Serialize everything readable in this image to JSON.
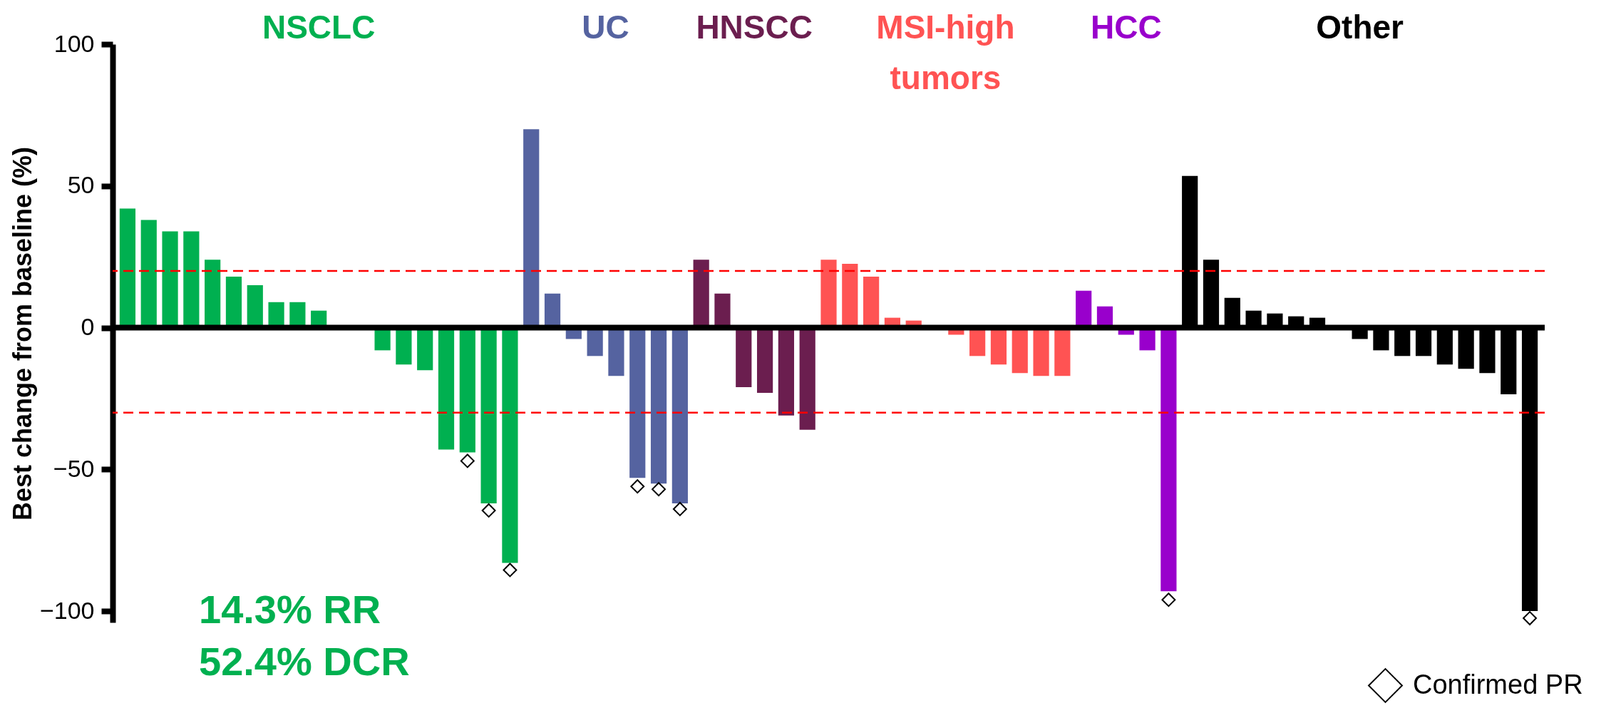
{
  "chart_data": {
    "type": "bar",
    "ylabel": "Best change from baseline (%)",
    "categories": [
      null,
      null,
      null,
      null,
      null,
      null,
      null,
      null,
      null,
      null,
      null,
      null,
      null,
      null,
      null,
      null,
      null,
      null,
      null,
      null,
      null,
      null,
      null,
      null,
      null,
      null,
      null,
      null,
      null,
      null,
      null,
      null,
      null,
      null,
      null,
      null,
      null,
      null,
      null,
      null,
      null,
      null,
      null,
      null,
      null,
      null,
      null,
      null,
      null,
      null,
      null,
      null,
      null,
      null,
      null,
      null,
      null,
      null,
      null,
      null,
      null,
      null,
      null,
      null,
      null,
      null,
      null
    ],
    "series": [
      {
        "name": "NSCLC",
        "color": "#00b050",
        "values": [
          42,
          38,
          34,
          34,
          24,
          18,
          15,
          9,
          9,
          6,
          null,
          null,
          -8,
          -13,
          -15,
          -43,
          -44,
          -62,
          -83,
          null,
          null,
          null,
          null,
          null,
          null,
          null,
          null,
          null,
          null,
          null,
          null,
          null,
          null,
          null,
          null,
          null,
          null,
          null,
          null,
          null,
          null,
          null,
          null,
          null,
          null,
          null,
          null,
          null,
          null,
          null,
          null,
          null,
          null,
          null,
          null,
          null,
          null,
          null,
          null,
          null,
          null,
          null,
          null,
          null,
          null,
          null,
          null
        ]
      },
      {
        "name": "UC",
        "color": "#5563a0",
        "values": [
          null,
          null,
          null,
          null,
          null,
          null,
          null,
          null,
          null,
          null,
          null,
          null,
          null,
          null,
          null,
          null,
          null,
          null,
          null,
          70,
          12,
          -4,
          -10,
          -17,
          -53,
          -55,
          -62,
          null,
          null,
          null,
          null,
          null,
          null,
          null,
          null,
          null,
          null,
          null,
          null,
          null,
          null,
          null,
          null,
          null,
          null,
          null,
          null,
          null,
          null,
          null,
          null,
          null,
          null,
          null,
          null,
          null,
          null,
          null,
          null,
          null,
          null,
          null,
          null,
          null,
          null,
          null,
          null
        ]
      },
      {
        "name": "HNSCC",
        "color": "#6b1e4f",
        "values": [
          null,
          null,
          null,
          null,
          null,
          null,
          null,
          null,
          null,
          null,
          null,
          null,
          null,
          null,
          null,
          null,
          null,
          null,
          null,
          null,
          null,
          null,
          null,
          null,
          null,
          null,
          null,
          24,
          12,
          -21,
          -23,
          -31,
          -36,
          null,
          null,
          null,
          null,
          null,
          null,
          null,
          null,
          null,
          null,
          null,
          null,
          null,
          null,
          null,
          null,
          null,
          null,
          null,
          null,
          null,
          null,
          null,
          null,
          null,
          null,
          null,
          null,
          null,
          null,
          null,
          null,
          null,
          null
        ]
      },
      {
        "name": "MSI-high tumors",
        "color": "#ff5353",
        "values": [
          null,
          null,
          null,
          null,
          null,
          null,
          null,
          null,
          null,
          null,
          null,
          null,
          null,
          null,
          null,
          null,
          null,
          null,
          null,
          null,
          null,
          null,
          null,
          null,
          null,
          null,
          null,
          null,
          null,
          null,
          null,
          null,
          null,
          24,
          22.5,
          18,
          3.5,
          2.5,
          null,
          -2.5,
          -10,
          -13,
          -16,
          -17,
          -17,
          null,
          null,
          null,
          null,
          null,
          null,
          null,
          null,
          null,
          null,
          null,
          null,
          null,
          null,
          null,
          null,
          null,
          null,
          null,
          null,
          null,
          null
        ]
      },
      {
        "name": "HCC",
        "color": "#9900cc",
        "values": [
          null,
          null,
          null,
          null,
          null,
          null,
          null,
          null,
          null,
          null,
          null,
          null,
          null,
          null,
          null,
          null,
          null,
          null,
          null,
          null,
          null,
          null,
          null,
          null,
          null,
          null,
          null,
          null,
          null,
          null,
          null,
          null,
          null,
          null,
          null,
          null,
          null,
          null,
          null,
          null,
          null,
          null,
          null,
          null,
          null,
          13,
          7.5,
          -2.5,
          -8,
          -93,
          null,
          null,
          null,
          null,
          null,
          null,
          null,
          null,
          null,
          null,
          null,
          null,
          null,
          null,
          null,
          null,
          null
        ]
      },
      {
        "name": "Other",
        "color": "#000000",
        "values": [
          null,
          null,
          null,
          null,
          null,
          null,
          null,
          null,
          null,
          null,
          null,
          null,
          null,
          null,
          null,
          null,
          null,
          null,
          null,
          null,
          null,
          null,
          null,
          null,
          null,
          null,
          null,
          null,
          null,
          null,
          null,
          null,
          null,
          null,
          null,
          null,
          null,
          null,
          null,
          null,
          null,
          null,
          null,
          null,
          null,
          null,
          null,
          null,
          null,
          null,
          53.5,
          24,
          10.5,
          6,
          5,
          4,
          3.5,
          null,
          -4,
          -8,
          -10,
          -10,
          -13,
          -14.5,
          -16,
          -23.5,
          -100
        ]
      },
      {
        "name": "Confirmed PR",
        "type": "scatter",
        "marker": "diamond",
        "color": "#000000",
        "values": [
          null,
          null,
          null,
          null,
          null,
          null,
          null,
          null,
          null,
          null,
          null,
          null,
          null,
          null,
          null,
          null,
          -47,
          -64.5,
          -85.5,
          null,
          null,
          null,
          null,
          null,
          -56,
          -57,
          -64,
          null,
          null,
          null,
          null,
          null,
          null,
          null,
          null,
          null,
          null,
          null,
          null,
          null,
          null,
          null,
          null,
          null,
          null,
          null,
          null,
          null,
          null,
          -96,
          null,
          null,
          null,
          null,
          null,
          null,
          null,
          null,
          null,
          null,
          null,
          null,
          null,
          null,
          null,
          null,
          -102.5
        ]
      }
    ],
    "ylim": [
      -104,
      100
    ],
    "yticks": [
      -100,
      -50,
      0,
      50,
      100
    ],
    "ref_lines": [
      {
        "axis": "y",
        "value": 20,
        "color": "#ff0000",
        "line_style": "dashed"
      },
      {
        "axis": "y",
        "value": -30,
        "color": "#ff0000",
        "line_style": "dashed"
      }
    ],
    "annotations": [
      "14.3% RR",
      "52.4% DCR"
    ],
    "legend": "bottom right",
    "tick_labels": "y"
  }
}
